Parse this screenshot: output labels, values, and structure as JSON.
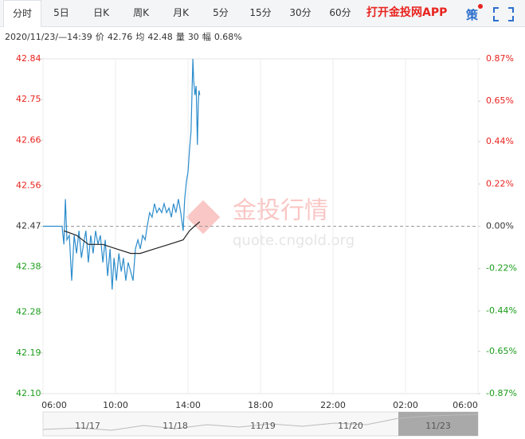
{
  "tabs": [
    "分时",
    "5日",
    "日K",
    "周K",
    "月K",
    "5分",
    "15分",
    "30分",
    "60分"
  ],
  "app_link": "打开金投网APP",
  "strategy_icon": "策",
  "info": {
    "datetime": "2020/11/23/—14:39",
    "price_label": "价",
    "price": 42.76,
    "avg_label": "均",
    "avg": 42.48,
    "volume_label": "量",
    "volume": 30,
    "range_label": "幅",
    "range": "0.68%"
  },
  "watermark": {
    "title": "金投行情",
    "url": "quote.cngold.org"
  },
  "navigator": {
    "labels": [
      "11/17",
      "11/18",
      "11/19",
      "11/20",
      "11/23"
    ]
  },
  "chart_data": {
    "type": "line",
    "up_color": "#e8231e",
    "down_color": "#1a9c1a",
    "ylim": [
      42.1,
      42.84
    ],
    "yticks": [
      {
        "value": 42.1,
        "label": "42.10"
      },
      42.19,
      42.28,
      42.38,
      42.47,
      42.56,
      42.66,
      42.75,
      42.84
    ],
    "y2lim": [
      -0.87,
      0.87
    ],
    "y2ticks": [
      {
        "value": -0.87,
        "label": "-0.87%"
      },
      {
        "value": -0.65,
        "label": "-0.65%"
      },
      {
        "value": -0.44,
        "label": "-0.44%"
      },
      {
        "value": -0.22,
        "label": "-0.22%"
      },
      {
        "value": 0,
        "label": "0.00%"
      },
      {
        "value": 0.22,
        "label": "0.22%"
      },
      {
        "value": 0.44,
        "label": "0.44%"
      },
      {
        "value": 0.65,
        "label": "0.65%"
      },
      {
        "value": 0.87,
        "label": "0.87%"
      }
    ],
    "xticks": [
      "06:00",
      "10:00",
      "14:00",
      "18:00",
      "22:00",
      "02:00",
      "06:00"
    ],
    "series": [
      {
        "name": "价",
        "color": "#2b8ccc",
        "x": [
          "06:00",
          "07:03",
          "07:09",
          "07:14",
          "07:19",
          "07:27",
          "07:35",
          "07:43",
          "07:51",
          "07:59",
          "08:07",
          "08:14",
          "08:22",
          "08:30",
          "08:38",
          "08:46",
          "08:54",
          "09:02",
          "09:10",
          "09:18",
          "09:26",
          "09:34",
          "09:42",
          "09:49",
          "09:55",
          "10:03",
          "10:11",
          "10:19",
          "10:26",
          "10:34",
          "10:42",
          "10:50",
          "10:58",
          "11:06",
          "11:14",
          "11:22",
          "11:30",
          "11:38",
          "11:45",
          "11:53",
          "12:01",
          "12:09",
          "12:17",
          "12:25",
          "12:33",
          "12:41",
          "12:49",
          "12:57",
          "13:05",
          "13:12",
          "13:20",
          "13:28",
          "13:36",
          "13:44",
          "13:49",
          "13:55",
          "14:00",
          "14:05",
          "14:10",
          "14:16",
          "14:19",
          "14:23",
          "14:27",
          "14:31",
          "14:34",
          "14:36",
          "14:39"
        ],
        "values": [
          42.47,
          42.47,
          42.43,
          42.53,
          42.44,
          42.45,
          42.35,
          42.45,
          42.41,
          42.46,
          42.4,
          42.43,
          42.46,
          42.39,
          42.45,
          42.41,
          42.46,
          42.43,
          42.45,
          42.39,
          42.44,
          42.36,
          42.42,
          42.33,
          42.4,
          42.35,
          42.41,
          42.37,
          42.4,
          42.35,
          42.39,
          42.37,
          42.35,
          42.42,
          42.44,
          42.42,
          42.45,
          42.44,
          42.47,
          42.5,
          42.49,
          42.52,
          42.5,
          42.51,
          42.5,
          42.52,
          42.5,
          42.51,
          42.49,
          42.52,
          42.5,
          42.53,
          42.5,
          42.46,
          42.53,
          42.57,
          42.59,
          42.64,
          42.68,
          42.84,
          42.79,
          42.76,
          42.78,
          42.65,
          42.74,
          42.77,
          42.76
        ]
      },
      {
        "name": "均",
        "color": "#222222",
        "x": [
          "07:09",
          "07:51",
          "08:30",
          "09:18",
          "10:03",
          "10:50",
          "11:22",
          "12:09",
          "12:57",
          "13:44",
          "14:05",
          "14:21",
          "14:39"
        ],
        "values": [
          42.46,
          42.45,
          42.43,
          42.43,
          42.42,
          42.41,
          42.41,
          42.42,
          42.43,
          42.44,
          42.46,
          42.47,
          42.48
        ]
      }
    ]
  }
}
